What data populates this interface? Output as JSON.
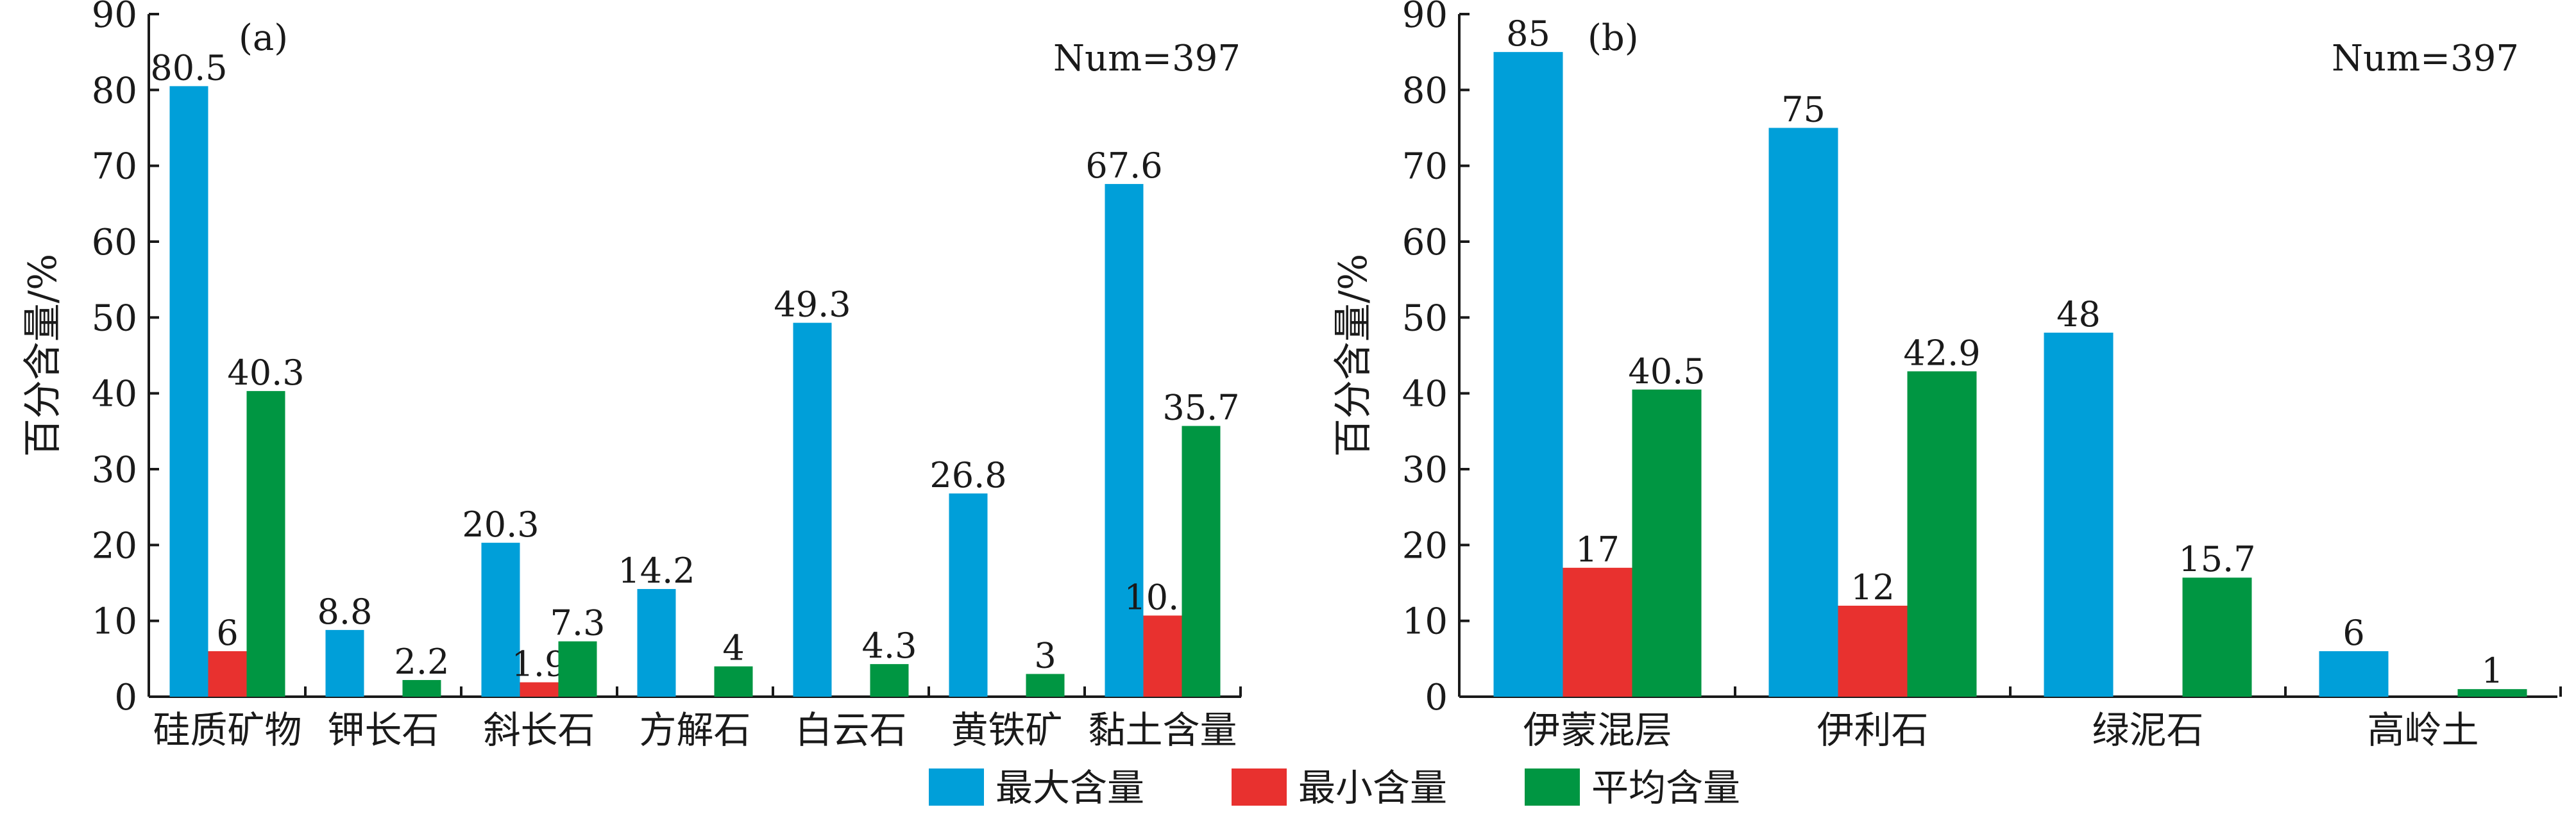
{
  "colors": {
    "max": "#009FD9",
    "min": "#E8312F",
    "avg": "#009642",
    "axis": "#1a1a1a"
  },
  "legend": {
    "labels": [
      "最大含量",
      "最小含量",
      "平均含量"
    ]
  },
  "chart_data": [
    {
      "type": "bar",
      "panel_label": "(a)",
      "annotation": "Num=397",
      "ylabel": "百分含量/%",
      "ylim": [
        0,
        90
      ],
      "yticks": [
        0,
        10,
        20,
        30,
        40,
        50,
        60,
        70,
        80,
        90
      ],
      "categories": [
        "硅质矿物",
        "钾长石",
        "斜长石",
        "方解石",
        "白云石",
        "黄铁矿",
        "黏土含量"
      ],
      "series": [
        {
          "name": "最大含量",
          "values": [
            80.5,
            8.8,
            20.3,
            14.2,
            49.3,
            26.8,
            67.6
          ]
        },
        {
          "name": "最小含量",
          "values": [
            6,
            null,
            1.9,
            null,
            null,
            null,
            10.7
          ]
        },
        {
          "name": "平均含量",
          "values": [
            40.3,
            2.2,
            7.3,
            4,
            4.3,
            3,
            35.7
          ]
        }
      ]
    },
    {
      "type": "bar",
      "panel_label": "(b)",
      "annotation": "Num=397",
      "ylabel": "百分含量/%",
      "ylim": [
        0,
        90
      ],
      "yticks": [
        0,
        10,
        20,
        30,
        40,
        50,
        60,
        70,
        80,
        90
      ],
      "categories": [
        "伊蒙混层",
        "伊利石",
        "绿泥石",
        "高岭土"
      ],
      "series": [
        {
          "name": "最大含量",
          "values": [
            85,
            75,
            48,
            6
          ]
        },
        {
          "name": "最小含量",
          "values": [
            17,
            12,
            null,
            null
          ]
        },
        {
          "name": "平均含量",
          "values": [
            40.5,
            42.9,
            15.7,
            1
          ]
        }
      ]
    }
  ]
}
